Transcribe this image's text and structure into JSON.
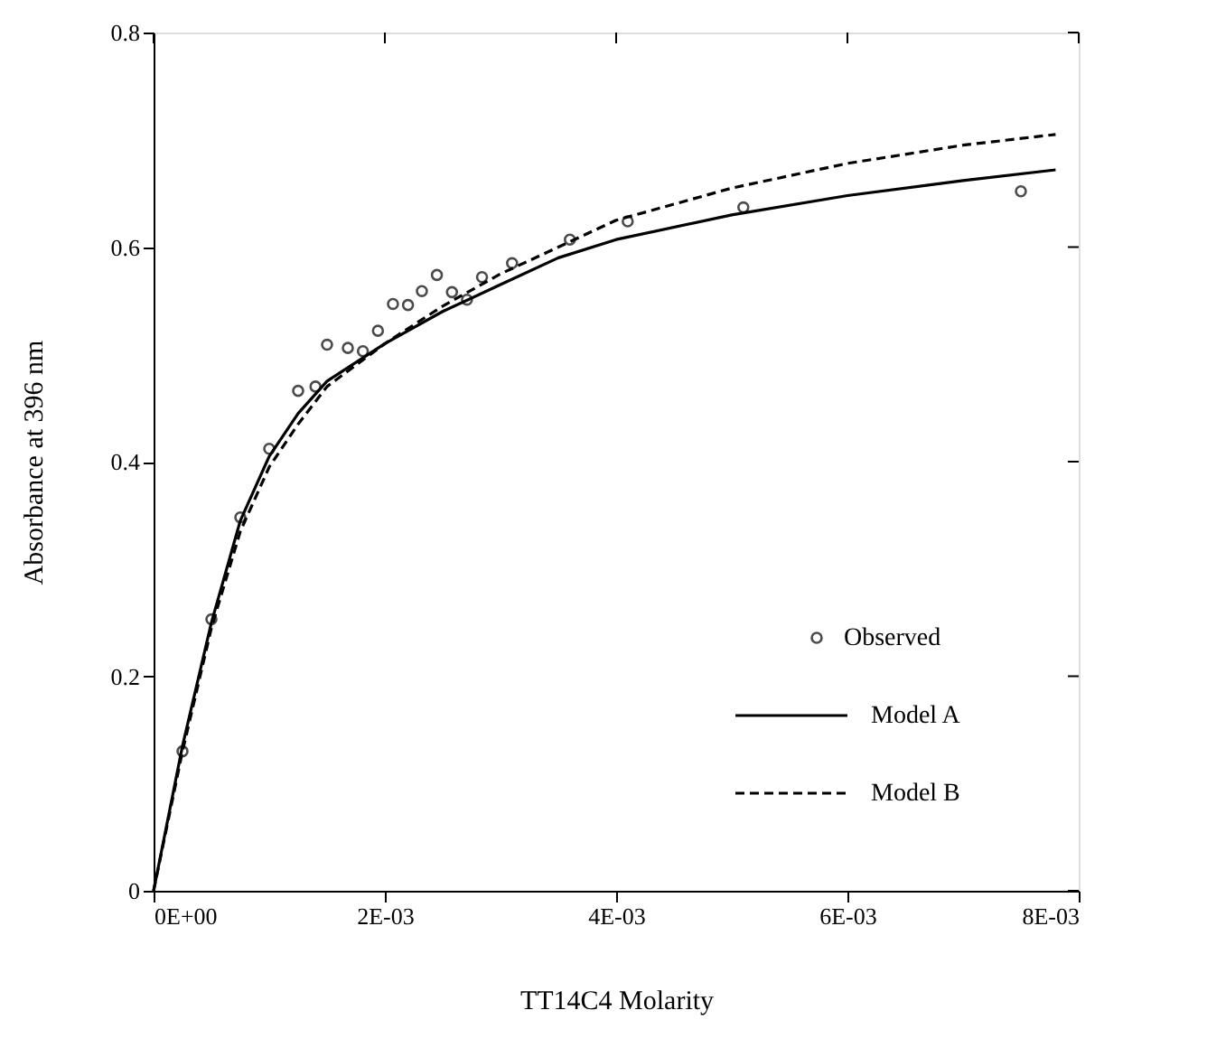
{
  "chart_data": {
    "type": "scatter",
    "xlabel": "TT14C4 Molarity",
    "ylabel": "Absorbance at 396 nm",
    "xlim": [
      0,
      0.008
    ],
    "ylim": [
      0,
      0.8
    ],
    "xticks": [
      {
        "value": 0,
        "label": "0E+00"
      },
      {
        "value": 0.002,
        "label": "2E-03"
      },
      {
        "value": 0.004,
        "label": "4E-03"
      },
      {
        "value": 0.006,
        "label": "6E-03"
      },
      {
        "value": 0.008,
        "label": "8E-03"
      }
    ],
    "yticks": [
      0,
      0.2,
      0.4,
      0.6,
      0.8
    ],
    "grid": false,
    "legend": "bottom right",
    "series": [
      {
        "name": "Observed",
        "color": "#000000",
        "marker": "circle",
        "x": [
          0.00025,
          0.0005,
          0.00075,
          0.001,
          0.00125,
          0.0014,
          0.0015,
          0.00168,
          0.00181,
          0.00194,
          0.00207,
          0.0022,
          0.00232,
          0.00245,
          0.00258,
          0.00271,
          0.00284,
          0.0031,
          0.0036,
          0.0041,
          0.0051,
          0.0075
        ],
        "values": [
          0.13,
          0.253,
          0.348,
          0.412,
          0.466,
          0.47,
          0.509,
          0.506,
          0.503,
          0.522,
          0.547,
          0.546,
          0.559,
          0.574,
          0.558,
          0.551,
          0.572,
          0.585,
          0.607,
          0.624,
          0.637,
          0.652
        ]
      },
      {
        "name": "Model A",
        "type": "line",
        "color": "#000000",
        "line_style": "solid",
        "marker": "none",
        "x": [
          0,
          0.00025,
          0.0005,
          0.00075,
          0.001,
          0.00125,
          0.0015,
          0.002,
          0.0025,
          0.003,
          0.0035,
          0.004,
          0.005,
          0.006,
          0.007,
          0.0078
        ],
        "values": [
          0,
          0.135,
          0.25,
          0.345,
          0.405,
          0.445,
          0.475,
          0.51,
          0.54,
          0.565,
          0.59,
          0.607,
          0.63,
          0.648,
          0.662,
          0.672
        ]
      },
      {
        "name": "Model B",
        "type": "line",
        "color": "#000000",
        "line_style": "dashed",
        "marker": "none",
        "x": [
          0,
          0.00025,
          0.0005,
          0.00075,
          0.001,
          0.00125,
          0.0015,
          0.002,
          0.0025,
          0.003,
          0.0035,
          0.004,
          0.005,
          0.006,
          0.007,
          0.0078
        ],
        "values": [
          0,
          0.13,
          0.245,
          0.335,
          0.395,
          0.435,
          0.47,
          0.51,
          0.545,
          0.575,
          0.6,
          0.625,
          0.655,
          0.678,
          0.695,
          0.705
        ]
      }
    ]
  }
}
